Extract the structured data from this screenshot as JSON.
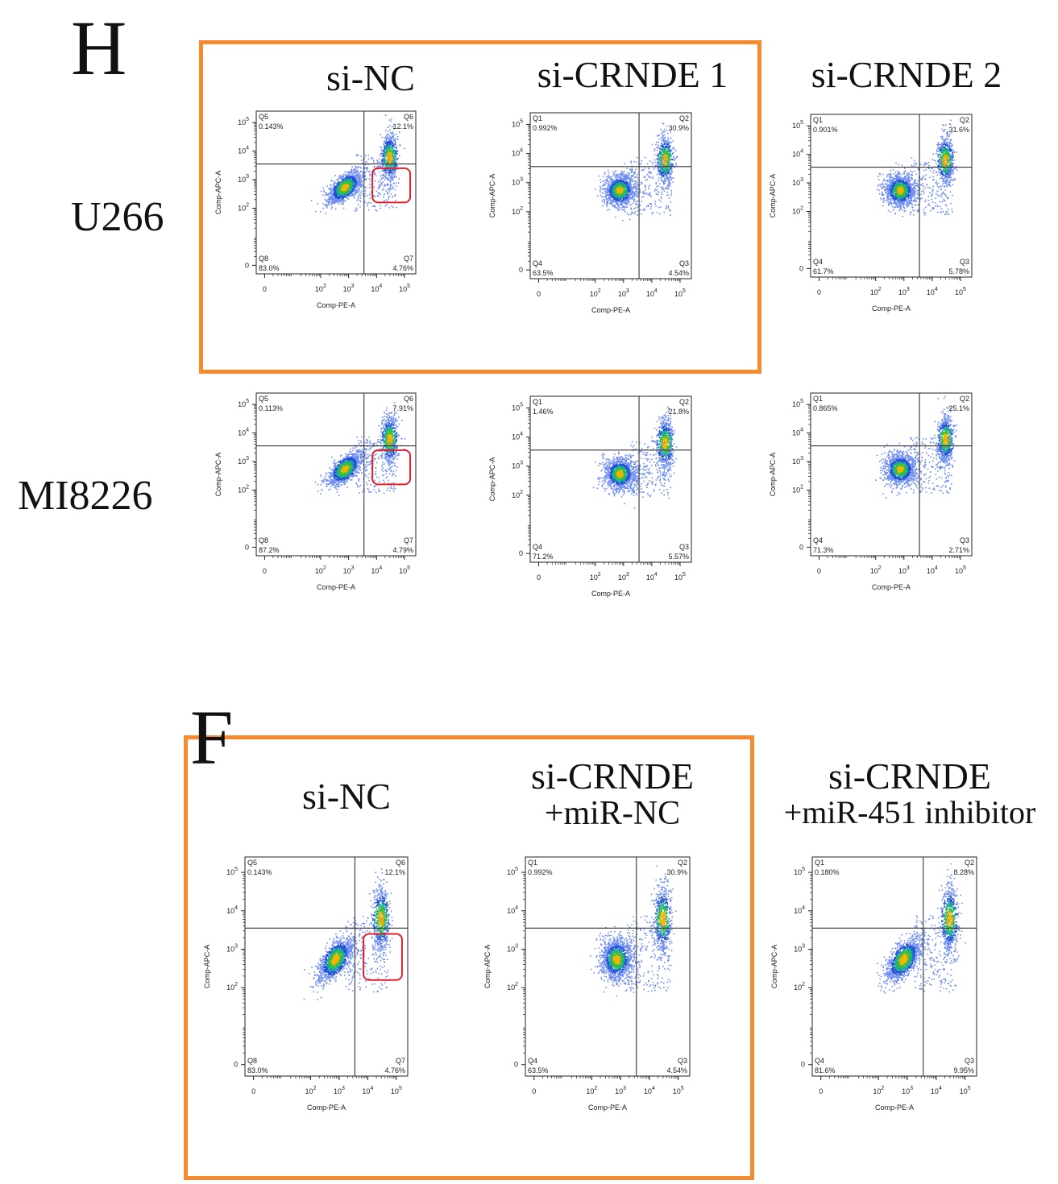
{
  "accent_color": "#f58a2e",
  "gate_color": "#e0202a",
  "panels": [
    {
      "letter": "H",
      "columns": [
        "si-NC",
        "si-CRNDE 1",
        "si-CRNDE 2"
      ],
      "rows": [
        "U266",
        "MI8226"
      ]
    },
    {
      "letter": "F",
      "columns": [
        [
          "si-NC"
        ],
        [
          "si-CRNDE",
          "+miR-NC"
        ],
        [
          "si-CRNDE",
          "+miR-451 inhibitor"
        ]
      ]
    }
  ],
  "axes": {
    "x_label": "Comp-PE-A",
    "y_label": "Comp-APC-A",
    "x_ticks": [
      "0",
      "10",
      "10",
      "10",
      "10"
    ],
    "x_tick_exponents": [
      "",
      "2",
      "3",
      "4",
      "5"
    ],
    "y_ticks": [
      "0",
      "10",
      "10",
      "10",
      "10"
    ],
    "y_tick_exponents": [
      "",
      "2",
      "3",
      "4",
      "5"
    ]
  },
  "chart_data": [
    {
      "type": "scatter",
      "id": "H-U266-siNC",
      "quadrants": {
        "UL": [
          "Q5",
          "0.143%"
        ],
        "UR": [
          "Q6",
          "12.1%"
        ],
        "LL": [
          "Q8",
          "83.0%"
        ],
        "LR": [
          "Q7",
          "4.76%"
        ]
      },
      "pattern": "diagonal",
      "gate": true
    },
    {
      "type": "scatter",
      "id": "H-U266-siCRNDE1",
      "quadrants": {
        "UL": [
          "Q1",
          "0.992%"
        ],
        "UR": [
          "Q2",
          "30.9%"
        ],
        "LL": [
          "Q4",
          "63.5%"
        ],
        "LR": [
          "Q3",
          "4.54%"
        ]
      },
      "pattern": "blob",
      "gate": false
    },
    {
      "type": "scatter",
      "id": "H-U266-siCRNDE2",
      "quadrants": {
        "UL": [
          "Q1",
          "0.901%"
        ],
        "UR": [
          "Q2",
          "31.6%"
        ],
        "LL": [
          "Q4",
          "61.7%"
        ],
        "LR": [
          "Q3",
          "5.78%"
        ]
      },
      "pattern": "blob",
      "gate": false
    },
    {
      "type": "scatter",
      "id": "H-MI8226-siNC",
      "quadrants": {
        "UL": [
          "Q5",
          "0.113%"
        ],
        "UR": [
          "Q6",
          "7.91%"
        ],
        "LL": [
          "Q8",
          "87.2%"
        ],
        "LR": [
          "Q7",
          "4.79%"
        ]
      },
      "pattern": "diagonal",
      "gate": true
    },
    {
      "type": "scatter",
      "id": "H-MI8226-siCRNDE1",
      "quadrants": {
        "UL": [
          "Q1",
          "1.46%"
        ],
        "UR": [
          "Q2",
          "21.8%"
        ],
        "LL": [
          "Q4",
          "71.2%"
        ],
        "LR": [
          "Q3",
          "5.57%"
        ]
      },
      "pattern": "blob",
      "gate": false
    },
    {
      "type": "scatter",
      "id": "H-MI8226-siCRNDE2",
      "quadrants": {
        "UL": [
          "Q1",
          "0.865%"
        ],
        "UR": [
          "Q2",
          "25.1%"
        ],
        "LL": [
          "Q4",
          "71.3%"
        ],
        "LR": [
          "Q3",
          "2.71%"
        ]
      },
      "pattern": "blob",
      "gate": false
    },
    {
      "type": "scatter",
      "id": "F-siNC",
      "quadrants": {
        "UL": [
          "Q5",
          "0.143%"
        ],
        "UR": [
          "Q6",
          "12.1%"
        ],
        "LL": [
          "Q8",
          "83.0%"
        ],
        "LR": [
          "Q7",
          "4.76%"
        ]
      },
      "pattern": "diagonal",
      "gate": true
    },
    {
      "type": "scatter",
      "id": "F-siCRNDE-miRNC",
      "quadrants": {
        "UL": [
          "Q1",
          "0.992%"
        ],
        "UR": [
          "Q2",
          "30.9%"
        ],
        "LL": [
          "Q4",
          "63.5%"
        ],
        "LR": [
          "Q3",
          "4.54%"
        ]
      },
      "pattern": "blob",
      "gate": false
    },
    {
      "type": "scatter",
      "id": "F-siCRNDE-miR451inh",
      "quadrants": {
        "UL": [
          "Q1",
          "0.180%"
        ],
        "UR": [
          "Q2",
          "8.28%"
        ],
        "LL": [
          "Q4",
          "81.6%"
        ],
        "LR": [
          "Q3",
          "9.95%"
        ]
      },
      "pattern": "diagonal",
      "gate": false
    }
  ]
}
